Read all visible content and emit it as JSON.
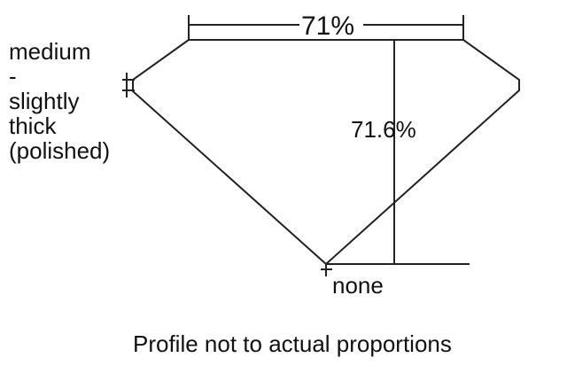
{
  "diagram": {
    "table_percent": "71%",
    "depth_percent": "71.6%",
    "girdle_label": [
      "medium",
      "-",
      "slightly",
      "thick",
      "(polished)"
    ],
    "culet_label": "none",
    "caption": "Profile not to actual proportions",
    "line_color": "#222222"
  }
}
